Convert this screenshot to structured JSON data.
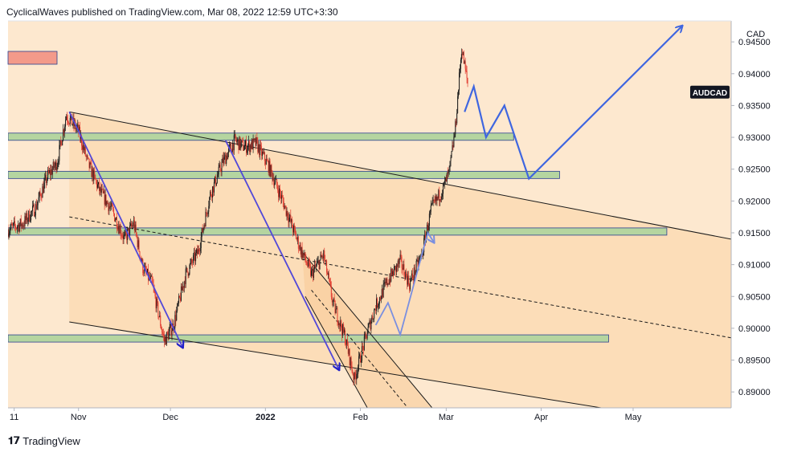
{
  "header": {
    "author": "CyclicalWaves",
    "published_text": "published on TradingView.com, Mar 08, 2022 12:59 UTC+3:30"
  },
  "footer": {
    "brand": "TradingView",
    "logo_icon": "tradingview-logo-icon"
  },
  "colors": {
    "background_fill": "#fde8cf",
    "channel_fill": "#fbd9b0",
    "zone_fill": "#b5d5a0",
    "zone_border": "#2a3f8f",
    "candle_up": "#1a1a1a",
    "candle_down": "#e23b2f",
    "arrow_blue": "#3f66e0",
    "arrow_indigo": "#5248d8",
    "arrow_light": "#7a8fe0",
    "symbol_label_bg": "#131722",
    "red_marker": "#f39a8a"
  },
  "chart_data": {
    "type": "candlestick",
    "symbol": "AUDCAD",
    "currency": "CAD",
    "y_ticks": [
      0.945,
      0.94,
      0.935,
      0.93,
      0.925,
      0.92,
      0.915,
      0.91,
      0.905,
      0.9,
      0.895,
      0.89
    ],
    "y_tick_labels": [
      "0.94500",
      "0.94000",
      "0.93500",
      "0.93000",
      "0.92500",
      "0.92000",
      "0.91500",
      "0.91000",
      "0.90500",
      "0.90000",
      "0.89500",
      "0.89000"
    ],
    "ylim": [
      0.8875,
      0.9483
    ],
    "x_range": [
      "2021-10-09",
      "2022-06-02"
    ],
    "x_ticks": [
      {
        "date": "2021-10-11",
        "label": "11"
      },
      {
        "date": "2021-11-01",
        "label": "Nov"
      },
      {
        "date": "2021-12-01",
        "label": "Dec"
      },
      {
        "date": "2022-01-01",
        "label": "2022"
      },
      {
        "date": "2022-02-01",
        "label": "Feb"
      },
      {
        "date": "2022-03-01",
        "label": "Mar"
      },
      {
        "date": "2022-04-01",
        "label": "Apr"
      },
      {
        "date": "2022-05-01",
        "label": "May"
      }
    ],
    "price_path": [
      [
        "2021-10-09",
        0.9155
      ],
      [
        "2021-10-14",
        0.9165
      ],
      [
        "2021-10-18",
        0.919
      ],
      [
        "2021-10-22",
        0.924
      ],
      [
        "2021-10-25",
        0.926
      ],
      [
        "2021-10-28",
        0.9335
      ],
      [
        "2021-11-01",
        0.931
      ],
      [
        "2021-11-04",
        0.926
      ],
      [
        "2021-11-08",
        0.9215
      ],
      [
        "2021-11-12",
        0.9185
      ],
      [
        "2021-11-16",
        0.914
      ],
      [
        "2021-11-19",
        0.9165
      ],
      [
        "2021-11-22",
        0.9095
      ],
      [
        "2021-11-25",
        0.907
      ],
      [
        "2021-11-29",
        0.898
      ],
      [
        "2021-12-02",
        0.9005
      ],
      [
        "2021-12-06",
        0.9085
      ],
      [
        "2021-12-10",
        0.912
      ],
      [
        "2021-12-14",
        0.921
      ],
      [
        "2021-12-18",
        0.926
      ],
      [
        "2021-12-22",
        0.9295
      ],
      [
        "2021-12-25",
        0.9285
      ],
      [
        "2021-12-29",
        0.929
      ],
      [
        "2022-01-02",
        0.9255
      ],
      [
        "2022-01-05",
        0.922
      ],
      [
        "2022-01-09",
        0.917
      ],
      [
        "2022-01-12",
        0.913
      ],
      [
        "2022-01-16",
        0.9085
      ],
      [
        "2022-01-20",
        0.9115
      ],
      [
        "2022-01-23",
        0.904
      ],
      [
        "2022-01-27",
        0.8985
      ],
      [
        "2022-01-30",
        0.892
      ],
      [
        "2022-02-03",
        0.899
      ],
      [
        "2022-02-06",
        0.9035
      ],
      [
        "2022-02-10",
        0.9075
      ],
      [
        "2022-02-14",
        0.9105
      ],
      [
        "2022-02-17",
        0.907
      ],
      [
        "2022-02-21",
        0.9115
      ],
      [
        "2022-02-24",
        0.9185
      ],
      [
        "2022-02-28",
        0.922
      ],
      [
        "2022-03-02",
        0.9245
      ],
      [
        "2022-03-04",
        0.9315
      ],
      [
        "2022-03-06",
        0.944
      ],
      [
        "2022-03-08",
        0.9385
      ]
    ],
    "horizontal_zones": [
      {
        "price": 0.9301,
        "start": "2021-10-09",
        "end": "2022-03-23"
      },
      {
        "price": 0.9241,
        "start": "2021-10-09",
        "end": "2022-04-07"
      },
      {
        "price": 0.9152,
        "start": "2021-10-09",
        "end": "2022-05-12"
      },
      {
        "price": 0.8984,
        "start": "2021-10-09",
        "end": "2022-04-23"
      }
    ],
    "channel_lines": [
      {
        "style": "solid",
        "from": [
          "2021-10-29",
          0.934
        ],
        "to": [
          "2022-06-02",
          0.914
        ]
      },
      {
        "style": "dashed",
        "from": [
          "2021-10-29",
          0.9175
        ],
        "to": [
          "2022-06-02",
          0.8985
        ]
      },
      {
        "style": "solid",
        "from": [
          "2021-10-29",
          0.901
        ],
        "to": [
          "2022-06-02",
          0.8842
        ]
      }
    ],
    "inner_channel": [
      {
        "style": "solid",
        "from": [
          "2022-01-13",
          0.912
        ],
        "to": [
          "2022-02-27",
          0.886
        ]
      },
      {
        "style": "dashed",
        "from": [
          "2022-01-16",
          0.906
        ],
        "to": [
          "2022-02-19",
          0.886
        ]
      },
      {
        "style": "solid",
        "from": [
          "2022-01-14",
          0.905
        ],
        "to": [
          "2022-02-05",
          0.886
        ]
      }
    ],
    "wave_arrows": [
      {
        "color": "arrow_indigo",
        "from": [
          "2021-10-29",
          0.934
        ],
        "to": [
          "2021-12-05",
          0.897
        ]
      },
      {
        "color": "arrow_indigo",
        "from": [
          "2021-12-19",
          0.9295
        ],
        "to": [
          "2022-01-25",
          0.8935
        ]
      },
      {
        "color": "arrow_light",
        "points": [
          [
            "2022-02-06",
            0.9005
          ],
          [
            "2022-02-10",
            0.904
          ],
          [
            "2022-02-14",
            0.899
          ],
          [
            "2022-02-23",
            0.915
          ],
          [
            "2022-02-25",
            0.9135
          ]
        ]
      },
      {
        "color": "arrow_blue",
        "points": [
          [
            "2022-03-07",
            0.934
          ],
          [
            "2022-03-10",
            0.938
          ],
          [
            "2022-03-14",
            0.93
          ],
          [
            "2022-03-20",
            0.935
          ],
          [
            "2022-03-28",
            0.9235
          ],
          [
            "2022-05-17",
            0.9475
          ]
        ]
      }
    ]
  }
}
